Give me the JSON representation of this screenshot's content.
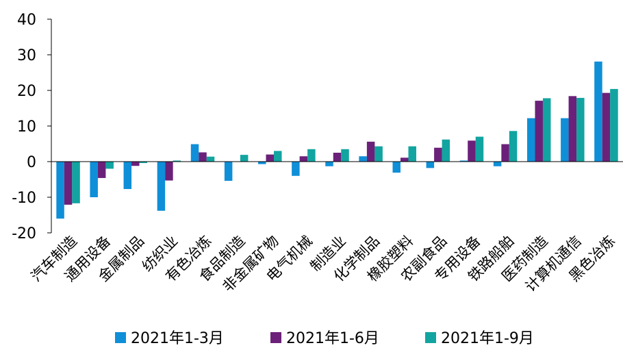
{
  "chart_data": {
    "type": "bar",
    "categories": [
      "汽车制造",
      "通用设备",
      "金属制品",
      "纺织业",
      "有色冶炼",
      "食品制造",
      "非金属矿物",
      "电气机械",
      "制造业",
      "化学制品",
      "橡胶塑料",
      "农副食品",
      "专用设备",
      "铁路船舶",
      "医药制造",
      "计算机通信",
      "黑色冶炼"
    ],
    "series": [
      {
        "name": "2021年1-3月",
        "color": "#0f8fd8",
        "values": [
          -16.0,
          -10.0,
          -7.7,
          -13.8,
          4.9,
          -5.4,
          -0.7,
          -4.0,
          -1.3,
          1.5,
          -3.1,
          -1.8,
          0.3,
          -1.3,
          12.2,
          12.2,
          28.1
        ]
      },
      {
        "name": "2021年1-6月",
        "color": "#6b2179",
        "values": [
          -12.1,
          -4.6,
          -1.2,
          -5.3,
          2.6,
          -0.1,
          2.0,
          1.5,
          2.5,
          5.6,
          1.1,
          3.9,
          5.9,
          4.9,
          17.1,
          18.4,
          19.3
        ]
      },
      {
        "name": "2021年1-9月",
        "color": "#12a4a0",
        "values": [
          -11.7,
          -2.0,
          -0.4,
          0.3,
          1.4,
          1.9,
          3.0,
          3.5,
          3.5,
          4.3,
          4.3,
          6.2,
          7.0,
          8.6,
          17.8,
          17.9,
          20.4
        ]
      }
    ],
    "y_ticks": [
      "40",
      "30",
      "20",
      "10",
      "0",
      "-10",
      "-20"
    ],
    "ylim": [
      -20,
      40
    ],
    "legend_position": "bottom",
    "grid": false
  }
}
